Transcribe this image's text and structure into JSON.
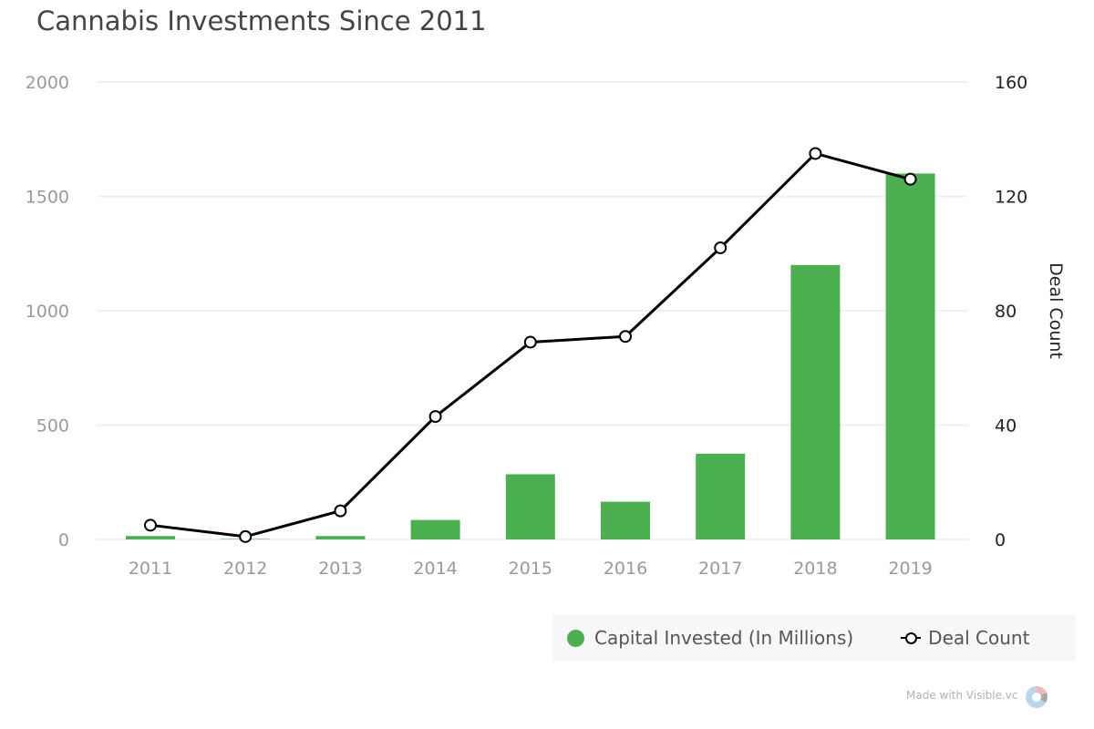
{
  "chart_data": {
    "type": "bar",
    "title": "Cannabis Investments Since 2011",
    "categories": [
      "2011",
      "2012",
      "2013",
      "2014",
      "2015",
      "2016",
      "2017",
      "2018",
      "2019"
    ],
    "series": [
      {
        "name": "Capital Invested (In Millions)",
        "type": "bar",
        "axis": "left",
        "color": "#4caf50",
        "values": [
          15,
          2,
          15,
          85,
          285,
          165,
          375,
          1200,
          1600
        ]
      },
      {
        "name": "Deal Count",
        "type": "line",
        "axis": "right",
        "color": "#000000",
        "values": [
          5,
          1,
          10,
          43,
          69,
          71,
          102,
          135,
          126
        ]
      }
    ],
    "left_axis": {
      "label": "",
      "min": 0,
      "max": 2000,
      "ticks": [
        0,
        500,
        1000,
        1500,
        2000
      ]
    },
    "right_axis": {
      "label": "Deal Count",
      "min": 0,
      "max": 160,
      "ticks": [
        0,
        40,
        80,
        120,
        160
      ]
    },
    "grid": true,
    "legend_position": "bottom-right"
  },
  "watermark": {
    "text": "Made with Visible.vc",
    "logo_icon": "visible-logo-icon"
  }
}
